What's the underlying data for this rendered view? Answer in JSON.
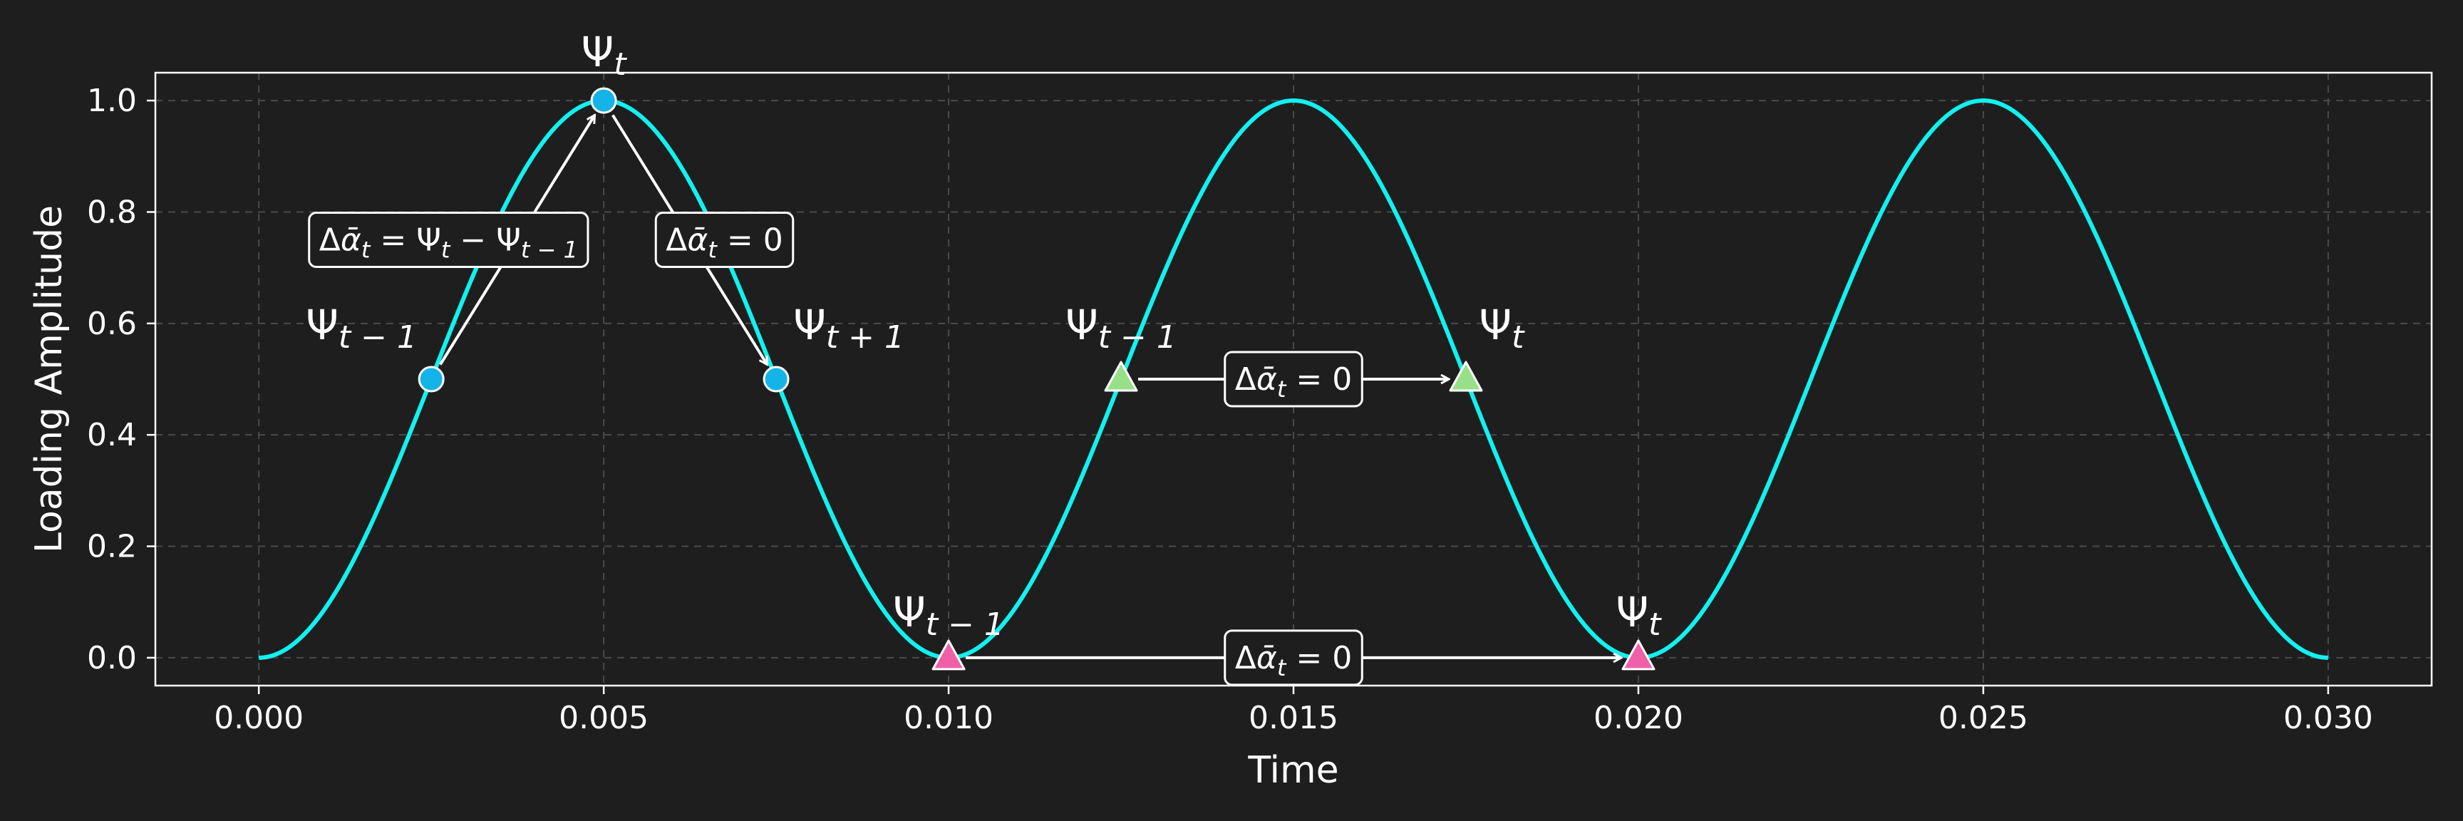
{
  "chart_data": {
    "type": "line",
    "xlabel": "Time",
    "ylabel": "Loading Amplitude",
    "xlim": [
      -0.0015,
      0.0315
    ],
    "ylim": [
      -0.05,
      1.05
    ],
    "xticks": [
      "0.000",
      "0.005",
      "0.010",
      "0.015",
      "0.020",
      "0.025",
      "0.030"
    ],
    "yticks": [
      "0.0",
      "0.2",
      "0.4",
      "0.6",
      "0.8",
      "1.0"
    ],
    "grid": true,
    "curve": {
      "function": "0.5*(1 - cos(2*pi*t/0.01))",
      "period": 0.01,
      "t_range": [
        0,
        0.03
      ],
      "color": "#13f0f0"
    },
    "points": [
      {
        "name": "circle-psi-t-minus-1",
        "x": 0.0025,
        "y": 0.5,
        "marker": "circle",
        "color": "#14b4e8"
      },
      {
        "name": "circle-psi-t",
        "x": 0.005,
        "y": 1.0,
        "marker": "circle",
        "color": "#14b4e8"
      },
      {
        "name": "circle-psi-t-plus-1",
        "x": 0.0075,
        "y": 0.5,
        "marker": "circle",
        "color": "#14b4e8"
      },
      {
        "name": "triangle-pink-psi-t-minus-1",
        "x": 0.01,
        "y": 0.0,
        "marker": "triangle",
        "color": "#f060a8"
      },
      {
        "name": "triangle-pink-psi-t",
        "x": 0.02,
        "y": 0.0,
        "marker": "triangle",
        "color": "#f060a8"
      },
      {
        "name": "triangle-green-psi-t-minus-1",
        "x": 0.0125,
        "y": 0.5,
        "marker": "triangle",
        "color": "#98e088"
      },
      {
        "name": "triangle-green-psi-t",
        "x": 0.0175,
        "y": 0.5,
        "marker": "triangle",
        "color": "#98e088"
      }
    ],
    "arrows": [
      {
        "name": "arrow-rise",
        "from": [
          0.0025,
          0.5
        ],
        "to": [
          0.005,
          1.0
        ]
      },
      {
        "name": "arrow-fall",
        "from": [
          0.005,
          1.0
        ],
        "to": [
          0.0075,
          0.5
        ]
      },
      {
        "name": "arrow-mid",
        "from": [
          0.0125,
          0.5
        ],
        "to": [
          0.0175,
          0.5
        ]
      },
      {
        "name": "arrow-bottom",
        "from": [
          0.01,
          0.0
        ],
        "to": [
          0.02,
          0.0
        ]
      }
    ],
    "labels": [
      {
        "name": "label-psi-t-top",
        "base": "Ψ",
        "sub": "t",
        "x": 0.005,
        "y": 1.0
      },
      {
        "name": "label-psi-t-minus-1-left",
        "base": "Ψ",
        "sub": "t − 1",
        "x": 0.0025,
        "y": 0.5
      },
      {
        "name": "label-psi-t-plus-1",
        "base": "Ψ",
        "sub": "t + 1",
        "x": 0.0075,
        "y": 0.5
      },
      {
        "name": "label-psi-t-minus-1-mid",
        "base": "Ψ",
        "sub": "t − 1",
        "x": 0.0125,
        "y": 0.5
      },
      {
        "name": "label-psi-t-mid",
        "base": "Ψ",
        "sub": "t",
        "x": 0.0175,
        "y": 0.5
      },
      {
        "name": "label-psi-t-minus-1-bottom",
        "base": "Ψ",
        "sub": "t − 1",
        "x": 0.01,
        "y": 0.0
      },
      {
        "name": "label-psi-t-bottom",
        "base": "Ψ",
        "sub": "t",
        "x": 0.02,
        "y": 0.0
      }
    ],
    "annotations": [
      {
        "name": "annotation-delta-alpha-diff",
        "parts": [
          {
            "t": "Δ"
          },
          {
            "t": "ᾱ",
            "i": true
          },
          {
            "t": "t",
            "s": true
          },
          {
            "t": " = Ψ"
          },
          {
            "t": "t",
            "s": true
          },
          {
            "t": " − Ψ"
          },
          {
            "t": "t − 1",
            "s": true
          }
        ],
        "x": 0.00275,
        "y": 0.75
      },
      {
        "name": "annotation-delta-alpha-zero-right",
        "parts": [
          {
            "t": "Δ"
          },
          {
            "t": "ᾱ",
            "i": true
          },
          {
            "t": "t",
            "s": true
          },
          {
            "t": " = 0"
          }
        ],
        "x": 0.00675,
        "y": 0.75
      },
      {
        "name": "annotation-delta-alpha-zero-mid",
        "parts": [
          {
            "t": "Δ"
          },
          {
            "t": "ᾱ",
            "i": true
          },
          {
            "t": "t",
            "s": true
          },
          {
            "t": " = 0"
          }
        ],
        "x": 0.015,
        "y": 0.5
      },
      {
        "name": "annotation-delta-alpha-zero-bottom",
        "parts": [
          {
            "t": "Δ"
          },
          {
            "t": "ᾱ",
            "i": true
          },
          {
            "t": "t",
            "s": true
          },
          {
            "t": " = 0"
          }
        ],
        "x": 0.015,
        "y": 0.0
      }
    ],
    "colors": {
      "background": "#1e1e1e",
      "axes": "#ffffff",
      "grid": "#4a4a4a",
      "text": "#ffffff",
      "box_fill": "#1e1e1e",
      "box_border": "#ffffff"
    }
  }
}
